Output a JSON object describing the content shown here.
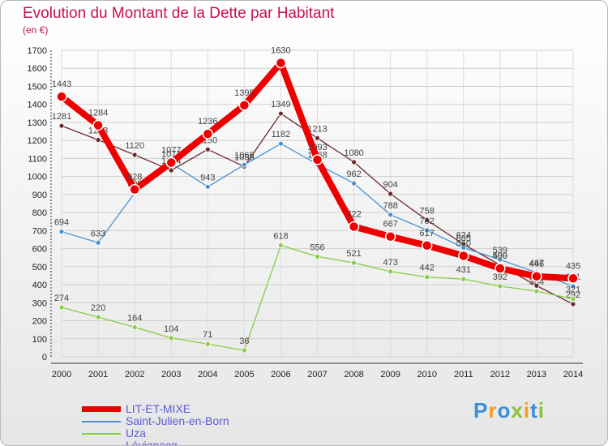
{
  "title": "Evolution du Montant de la Dette par Habitant",
  "unit": "(en €)",
  "logo": "Proxiti",
  "chart_data": {
    "type": "line",
    "categories": [
      "2000",
      "2001",
      "2002",
      "2003",
      "2004",
      "2005",
      "2006",
      "2007",
      "2008",
      "2009",
      "2010",
      "2011",
      "2012",
      "2013",
      "2014"
    ],
    "ylim": [
      0,
      1700
    ],
    "yticks": [
      0,
      100,
      200,
      300,
      400,
      500,
      600,
      700,
      800,
      900,
      1000,
      1100,
      1200,
      1300,
      1400,
      1500,
      1600,
      1700
    ],
    "grid": true,
    "legend_position": "bottom-left",
    "series": [
      {
        "name": "LIT-ET-MIXE",
        "color": "#ee0000",
        "values": [
          1443,
          1284,
          928,
          1077,
          1236,
          1395,
          1630,
          1093,
          722,
          667,
          617,
          560,
          490,
          446,
          435
        ]
      },
      {
        "name": "Saint-Julien-en-Born",
        "color": "#4a90d0",
        "values": [
          694,
          633,
          909,
          1073,
          943,
          1065,
          1182,
          1068,
          962,
          788,
          702,
          605,
          539,
          467,
          391
        ]
      },
      {
        "name": "Uza",
        "color": "#88cc44",
        "values": [
          274,
          220,
          164,
          104,
          71,
          36,
          618,
          556,
          521,
          473,
          442,
          431,
          392,
          364,
          321
        ]
      },
      {
        "name": "Lévignacq",
        "color": "#6b2a2a",
        "values": [
          1281,
          1203,
          1120,
          1034,
          1150,
          1055,
          1349,
          1213,
          1080,
          904,
          758,
          624,
          509,
          394,
          292
        ]
      }
    ]
  }
}
